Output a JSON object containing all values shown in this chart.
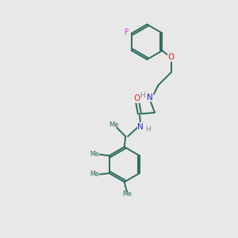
{
  "background_color": "#e8e8e8",
  "bond_color": "#2d6b5e",
  "F_color": "#cc44cc",
  "O_color": "#dd2222",
  "N_color": "#2222cc",
  "H_color": "#888888",
  "figsize": [
    3.0,
    3.0
  ],
  "dpi": 100,
  "xlim": [
    0,
    10
  ],
  "ylim": [
    0,
    10
  ]
}
